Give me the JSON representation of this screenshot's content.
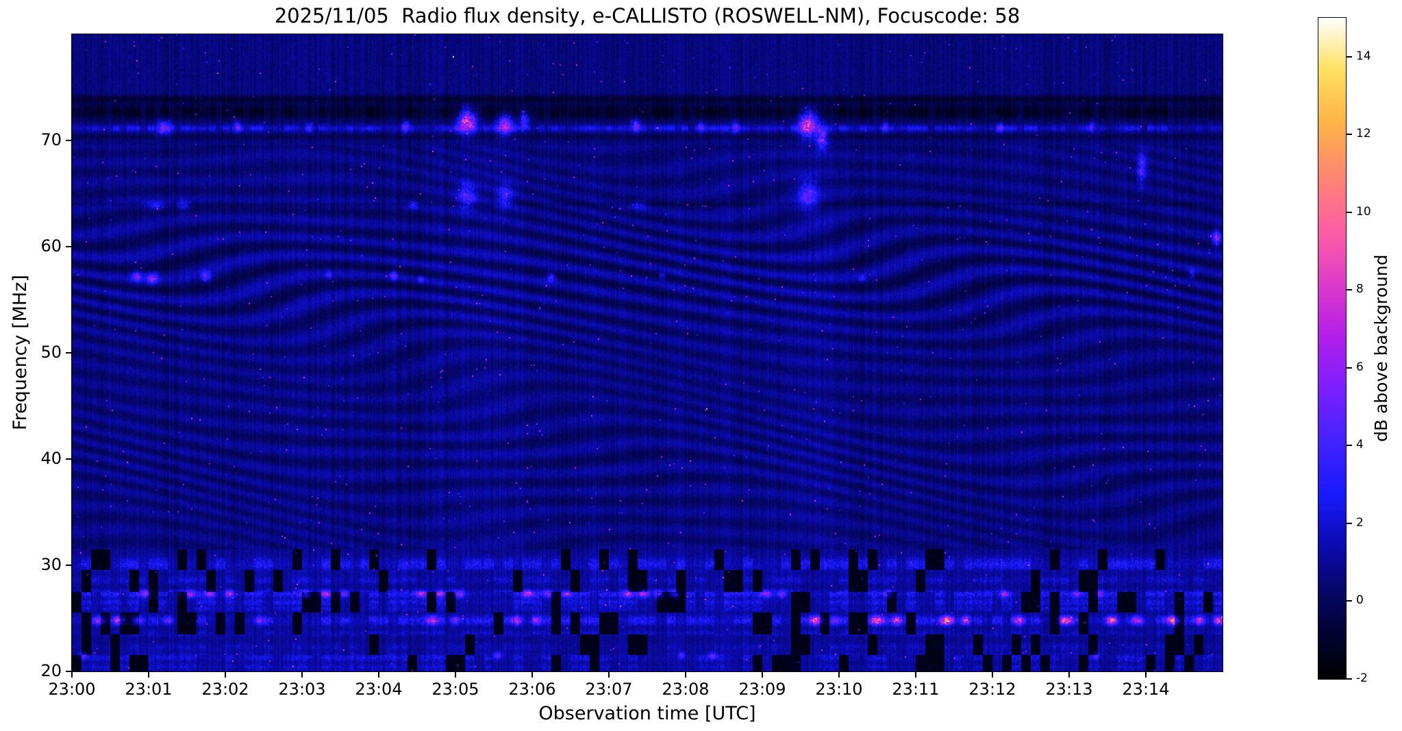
{
  "chart_data": {
    "type": "heatmap",
    "title": "2025/11/05  Radio flux density, e-CALLISTO (ROSWELL-NM), Focuscode: 58",
    "xlabel": "Observation time [UTC]",
    "ylabel": "Frequency [MHz]",
    "x_tick_labels": [
      "23:00",
      "23:01",
      "23:02",
      "23:03",
      "23:04",
      "23:05",
      "23:06",
      "23:07",
      "23:08",
      "23:09",
      "23:10",
      "23:11",
      "23:12",
      "23:13",
      "23:14"
    ],
    "x_start_minutes": 0,
    "x_end_minutes": 15,
    "y_min": 20,
    "y_max": 80,
    "y_ticks": [
      20,
      30,
      40,
      50,
      60,
      70
    ],
    "grid": false,
    "legend": "colorbar-right",
    "colorbar": {
      "label": "dB above background",
      "vmin": -2,
      "vmax": 15,
      "ticks": [
        -2,
        0,
        2,
        4,
        6,
        8,
        10,
        12,
        14
      ],
      "colormap_stops": [
        {
          "t": 0.0,
          "c": "#000000"
        },
        {
          "t": 0.06,
          "c": "#02022e"
        },
        {
          "t": 0.12,
          "c": "#05055e"
        },
        {
          "t": 0.2,
          "c": "#0b0bb0"
        },
        {
          "t": 0.28,
          "c": "#1a1aff"
        },
        {
          "t": 0.36,
          "c": "#4422ff"
        },
        {
          "t": 0.44,
          "c": "#7d1fff"
        },
        {
          "t": 0.52,
          "c": "#b51fe8"
        },
        {
          "t": 0.6,
          "c": "#e03cc8"
        },
        {
          "t": 0.68,
          "c": "#ff5fa2"
        },
        {
          "t": 0.76,
          "c": "#ff8672"
        },
        {
          "t": 0.84,
          "c": "#ffb347"
        },
        {
          "t": 0.92,
          "c": "#ffe060"
        },
        {
          "t": 1.0,
          "c": "#ffffff"
        }
      ]
    },
    "render_seed": 20251105,
    "background_level_db": 0.55,
    "low_band_top_mhz": 31.5,
    "low_band_stripes": [
      [
        30.1,
        0.6,
        2.4
      ],
      [
        28.6,
        0.4,
        1.4
      ],
      [
        27.3,
        0.35,
        2.6
      ],
      [
        26.5,
        0.3,
        2.0
      ],
      [
        25.9,
        0.25,
        1.4
      ],
      [
        24.8,
        0.45,
        2.6
      ],
      [
        23.6,
        0.3,
        1.2
      ],
      [
        22.3,
        0.35,
        1.0
      ],
      [
        21.3,
        0.4,
        1.6
      ],
      [
        20.4,
        0.3,
        1.3
      ]
    ],
    "bursts_format": "[t_min, f_MHz, sigma_t_min, sigma_f_MHz, amp_dB]",
    "bursts": [
      [
        5.15,
        71.8,
        0.12,
        1.1,
        9
      ],
      [
        5.65,
        71.5,
        0.1,
        1.0,
        7
      ],
      [
        5.9,
        72.0,
        0.06,
        0.8,
        5
      ],
      [
        9.6,
        71.5,
        0.12,
        1.2,
        9
      ],
      [
        9.78,
        70.2,
        0.07,
        1.0,
        6
      ],
      [
        1.2,
        71.2,
        0.1,
        0.7,
        5
      ],
      [
        2.15,
        71.3,
        0.05,
        0.6,
        4
      ],
      [
        3.1,
        71.2,
        0.04,
        0.5,
        3.5
      ],
      [
        4.35,
        71.3,
        0.05,
        0.6,
        4
      ],
      [
        7.35,
        71.4,
        0.06,
        0.7,
        4.5
      ],
      [
        8.2,
        71.3,
        0.04,
        0.5,
        3.5
      ],
      [
        8.65,
        71.2,
        0.05,
        0.6,
        4
      ],
      [
        10.6,
        71.3,
        0.04,
        0.5,
        3
      ],
      [
        12.1,
        71.2,
        0.04,
        0.5,
        3
      ],
      [
        13.3,
        71.3,
        0.04,
        0.5,
        3
      ],
      [
        5.15,
        64.8,
        0.12,
        1.2,
        4
      ],
      [
        5.65,
        64.8,
        0.1,
        1.2,
        3.5
      ],
      [
        9.6,
        64.8,
        0.12,
        1.4,
        4.5
      ],
      [
        1.1,
        63.9,
        0.15,
        0.4,
        3
      ],
      [
        1.45,
        63.9,
        0.08,
        0.4,
        3
      ],
      [
        4.45,
        63.9,
        0.06,
        0.4,
        3
      ],
      [
        7.4,
        63.9,
        0.1,
        0.4,
        2.5
      ],
      [
        13.95,
        67.5,
        0.06,
        1.5,
        4.5
      ],
      [
        14.92,
        60.8,
        0.05,
        0.8,
        5.5
      ],
      [
        14.6,
        57.5,
        0.04,
        0.5,
        3.5
      ],
      [
        0.85,
        57.2,
        0.07,
        0.5,
        5
      ],
      [
        1.05,
        57.0,
        0.07,
        0.5,
        5.5
      ],
      [
        1.75,
        57.2,
        0.06,
        0.45,
        5
      ],
      [
        3.35,
        57.3,
        0.04,
        0.3,
        3
      ],
      [
        4.2,
        57.3,
        0.05,
        0.4,
        4.5
      ],
      [
        4.55,
        56.9,
        0.04,
        0.35,
        3.5
      ],
      [
        6.25,
        57.1,
        0.05,
        0.4,
        4.5
      ],
      [
        7.7,
        57.2,
        0.04,
        0.35,
        3
      ],
      [
        10.3,
        57.0,
        0.04,
        0.35,
        3
      ],
      [
        0.95,
        27.3,
        0.07,
        0.35,
        6
      ],
      [
        1.55,
        27.3,
        0.07,
        0.35,
        6
      ],
      [
        1.8,
        27.3,
        0.06,
        0.35,
        5
      ],
      [
        2.05,
        27.3,
        0.06,
        0.35,
        5
      ],
      [
        3.05,
        27.3,
        0.06,
        0.35,
        5
      ],
      [
        3.3,
        27.3,
        0.07,
        0.35,
        6
      ],
      [
        3.55,
        27.3,
        0.06,
        0.35,
        5
      ],
      [
        4.55,
        27.3,
        0.07,
        0.35,
        6
      ],
      [
        4.8,
        27.3,
        0.06,
        0.35,
        5
      ],
      [
        5.05,
        27.3,
        0.07,
        0.35,
        6
      ],
      [
        5.95,
        27.3,
        0.07,
        0.35,
        6
      ],
      [
        6.2,
        27.3,
        0.06,
        0.35,
        5
      ],
      [
        6.45,
        27.3,
        0.06,
        0.35,
        5
      ],
      [
        7.25,
        27.3,
        0.06,
        0.35,
        6
      ],
      [
        7.45,
        27.3,
        0.07,
        0.35,
        7
      ],
      [
        7.65,
        27.3,
        0.06,
        0.35,
        6
      ],
      [
        7.85,
        27.3,
        0.06,
        0.35,
        5
      ],
      [
        9.05,
        27.3,
        0.07,
        0.35,
        6
      ],
      [
        9.25,
        27.3,
        0.06,
        0.35,
        5
      ],
      [
        10.65,
        27.3,
        0.05,
        0.35,
        4
      ],
      [
        12.15,
        27.3,
        0.06,
        0.35,
        5
      ],
      [
        13.1,
        27.3,
        0.05,
        0.35,
        4
      ],
      [
        13.4,
        27.3,
        0.05,
        0.35,
        4
      ],
      [
        0.35,
        24.8,
        0.08,
        0.4,
        6
      ],
      [
        0.6,
        24.8,
        0.08,
        0.4,
        7
      ],
      [
        0.85,
        24.8,
        0.07,
        0.4,
        6
      ],
      [
        1.25,
        24.8,
        0.06,
        0.4,
        5
      ],
      [
        2.45,
        24.8,
        0.06,
        0.4,
        5
      ],
      [
        4.7,
        24.8,
        0.07,
        0.4,
        6
      ],
      [
        5.0,
        24.8,
        0.06,
        0.4,
        5
      ],
      [
        5.8,
        24.8,
        0.07,
        0.4,
        6
      ],
      [
        6.05,
        24.8,
        0.06,
        0.4,
        5
      ],
      [
        9.7,
        24.8,
        0.08,
        0.4,
        8
      ],
      [
        9.95,
        24.8,
        0.06,
        0.4,
        6
      ],
      [
        10.5,
        24.8,
        0.08,
        0.4,
        9
      ],
      [
        10.75,
        24.8,
        0.06,
        0.4,
        7
      ],
      [
        11.4,
        24.8,
        0.09,
        0.4,
        10
      ],
      [
        11.65,
        24.8,
        0.06,
        0.4,
        8
      ],
      [
        12.35,
        24.8,
        0.07,
        0.4,
        7
      ],
      [
        12.95,
        24.8,
        0.08,
        0.4,
        10
      ],
      [
        13.55,
        24.8,
        0.08,
        0.4,
        8
      ],
      [
        13.9,
        24.8,
        0.07,
        0.4,
        7
      ],
      [
        14.35,
        24.8,
        0.08,
        0.4,
        10
      ],
      [
        14.7,
        24.8,
        0.07,
        0.4,
        8
      ],
      [
        14.95,
        24.8,
        0.06,
        0.4,
        7
      ],
      [
        0.15,
        21.5,
        0.05,
        0.3,
        5
      ],
      [
        5.55,
        21.5,
        0.05,
        0.3,
        5
      ],
      [
        7.95,
        21.5,
        0.04,
        0.3,
        4
      ],
      [
        8.35,
        21.5,
        0.05,
        0.3,
        5
      ],
      [
        13.35,
        21.5,
        0.04,
        0.3,
        4
      ]
    ]
  }
}
